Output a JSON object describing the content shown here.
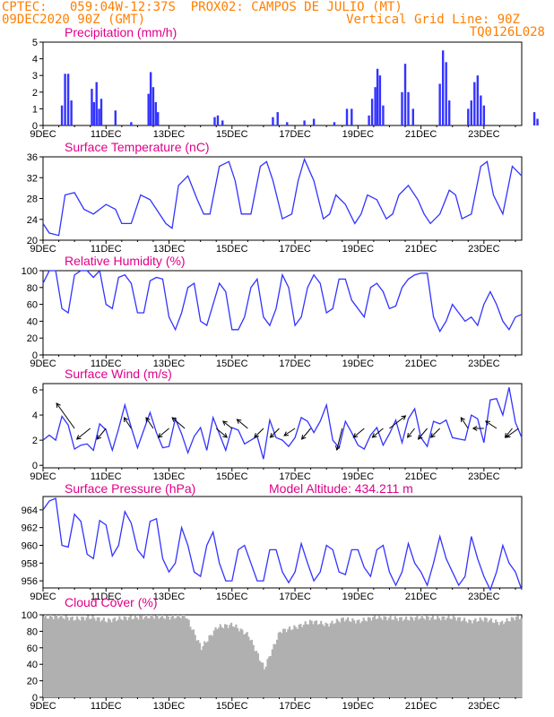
{
  "header": {
    "source": "CPTEC:",
    "coords": "059:04W-12:37S",
    "location": "PROX02: CAMPOS DE JULIO (MT)",
    "run": "09DEC2020 90Z (GMT)",
    "grid_note": "Vertical Grid Line: 90Z",
    "code": "TQ0126L028"
  },
  "x_ticks": [
    "9DEC",
    "11DEC",
    "13DEC",
    "15DEC",
    "17DEC",
    "19DEC",
    "21DEC",
    "23DEC"
  ],
  "colors": {
    "series": "#3333ff",
    "title": "#e0008a",
    "header": "#ff7f00",
    "cloud": "#b0b0b0",
    "arrow": "#000000"
  },
  "chart_data": [
    {
      "type": "bar",
      "title": "Precipitation (mm/h)",
      "xlabel": "",
      "ylabel": "",
      "ylim": [
        0,
        5
      ],
      "yticks": [
        "0",
        "1",
        "2",
        "3",
        "4",
        "5"
      ],
      "x_unit": "days since 9DEC",
      "events": [
        [
          0.6,
          1.2
        ],
        [
          0.7,
          3.1
        ],
        [
          0.8,
          3.1
        ],
        [
          0.9,
          1.5
        ],
        [
          1.55,
          2.2
        ],
        [
          1.62,
          1.4
        ],
        [
          1.7,
          2.6
        ],
        [
          1.78,
          1.0
        ],
        [
          1.85,
          1.6
        ],
        [
          2.3,
          0.9
        ],
        [
          2.8,
          0.2
        ],
        [
          3.35,
          1.9
        ],
        [
          3.42,
          3.2
        ],
        [
          3.5,
          2.3
        ],
        [
          3.58,
          1.4
        ],
        [
          3.65,
          0.8
        ],
        [
          5.45,
          0.5
        ],
        [
          5.55,
          0.6
        ],
        [
          5.7,
          0.3
        ],
        [
          7.3,
          0.5
        ],
        [
          7.45,
          0.8
        ],
        [
          7.75,
          0.2
        ],
        [
          8.3,
          0.3
        ],
        [
          8.6,
          0.4
        ],
        [
          9.25,
          0.2
        ],
        [
          9.65,
          1.0
        ],
        [
          9.8,
          1.0
        ],
        [
          10.35,
          0.6
        ],
        [
          10.45,
          1.6
        ],
        [
          10.55,
          2.3
        ],
        [
          10.62,
          3.4
        ],
        [
          10.7,
          3.0
        ],
        [
          10.8,
          1.2
        ],
        [
          11.4,
          2.0
        ],
        [
          11.5,
          3.7
        ],
        [
          11.6,
          2.0
        ],
        [
          11.75,
          1.0
        ],
        [
          12.6,
          2.5
        ],
        [
          12.7,
          4.5
        ],
        [
          12.8,
          3.8
        ],
        [
          12.9,
          1.5
        ],
        [
          13.5,
          1.0
        ],
        [
          13.6,
          1.5
        ],
        [
          13.7,
          2.6
        ],
        [
          13.8,
          3.0
        ],
        [
          13.9,
          1.8
        ],
        [
          14.0,
          1.2
        ],
        [
          15.6,
          0.8
        ],
        [
          15.7,
          0.4
        ],
        [
          16.3,
          0.3
        ]
      ]
    },
    {
      "type": "line",
      "title": "Surface Temperature (nC)",
      "xlabel": "",
      "ylabel": "",
      "ylim": [
        18.5,
        36
      ],
      "yticks": [
        "20",
        "24",
        "28",
        "32",
        "36"
      ],
      "x_unit": "days since 9DEC",
      "x": [
        0,
        0.2,
        0.5,
        0.7,
        1.0,
        1.3,
        1.6,
        1.8,
        2.0,
        2.3,
        2.5,
        2.8,
        3.1,
        3.4,
        3.6,
        3.9,
        4.1,
        4.3,
        4.6,
        4.9,
        5.1,
        5.3,
        5.6,
        5.9,
        6.1,
        6.3,
        6.6,
        6.9,
        7.1,
        7.3,
        7.6,
        7.9,
        8.1,
        8.3,
        8.6,
        8.9,
        9.1,
        9.3,
        9.6,
        9.9,
        10.1,
        10.3,
        10.6,
        10.9,
        11.1,
        11.3,
        11.6,
        11.9,
        12.1,
        12.3,
        12.6,
        12.9,
        13.1,
        13.3,
        13.6,
        13.9,
        14.1,
        14.3,
        14.6,
        14.9,
        15.2
      ],
      "y": [
        22,
        20,
        19.5,
        28,
        28.5,
        25,
        24,
        25,
        26,
        25,
        22,
        22,
        28,
        27,
        25,
        22,
        21,
        30,
        32,
        27,
        24,
        24,
        34,
        35,
        31,
        24,
        24,
        34,
        35,
        31,
        23,
        24,
        31,
        35.5,
        31,
        23,
        24,
        28,
        26,
        22,
        24,
        28,
        27,
        23,
        24,
        28,
        30,
        27,
        24,
        22,
        24,
        29,
        28,
        23,
        24,
        34,
        35,
        28,
        24,
        34,
        32
      ]
    },
    {
      "type": "line",
      "title": "Relative Humidity (%)",
      "xlabel": "",
      "ylabel": "",
      "ylim": [
        0,
        100
      ],
      "yticks": [
        "0",
        "20",
        "40",
        "60",
        "80",
        "100"
      ],
      "x_unit": "days since 9DEC",
      "x": [
        0,
        0.2,
        0.4,
        0.6,
        0.8,
        1.0,
        1.2,
        1.4,
        1.6,
        1.8,
        2.0,
        2.2,
        2.4,
        2.6,
        2.8,
        3.0,
        3.2,
        3.4,
        3.6,
        3.8,
        4.0,
        4.2,
        4.4,
        4.6,
        4.8,
        5.0,
        5.2,
        5.4,
        5.6,
        5.8,
        6.0,
        6.2,
        6.4,
        6.6,
        6.8,
        7.0,
        7.2,
        7.4,
        7.6,
        7.8,
        8.0,
        8.2,
        8.4,
        8.6,
        8.8,
        9.0,
        9.2,
        9.4,
        9.6,
        9.8,
        10.0,
        10.2,
        10.4,
        10.6,
        10.8,
        11.0,
        11.2,
        11.4,
        11.6,
        11.8,
        12.0,
        12.2,
        12.4,
        12.6,
        12.8,
        13.0,
        13.2,
        13.4,
        13.6,
        13.8,
        14.0,
        14.2,
        14.4,
        14.6,
        14.8,
        15.0,
        15.2
      ],
      "y": [
        85,
        100,
        100,
        55,
        50,
        95,
        100,
        100,
        92,
        100,
        60,
        55,
        92,
        95,
        85,
        50,
        50,
        88,
        92,
        90,
        45,
        30,
        50,
        80,
        85,
        40,
        35,
        60,
        85,
        75,
        30,
        30,
        45,
        80,
        90,
        45,
        35,
        55,
        95,
        80,
        35,
        45,
        80,
        95,
        85,
        50,
        55,
        90,
        90,
        65,
        55,
        45,
        80,
        85,
        75,
        55,
        58,
        80,
        90,
        95,
        97,
        97,
        45,
        28,
        40,
        60,
        50,
        40,
        45,
        35,
        60,
        75,
        60,
        40,
        30,
        45,
        48
      ]
    },
    {
      "type": "line",
      "title": "Surface Wind (m/s)",
      "xlabel": "",
      "ylabel": "",
      "ylim": [
        -0.2,
        6.5
      ],
      "yticks": [
        "0",
        "2",
        "4",
        "6"
      ],
      "x_unit": "days since 9DEC",
      "x": [
        0,
        0.2,
        0.4,
        0.6,
        0.8,
        1.0,
        1.2,
        1.4,
        1.6,
        1.8,
        2.0,
        2.2,
        2.4,
        2.6,
        2.8,
        3.0,
        3.2,
        3.4,
        3.6,
        3.8,
        4.0,
        4.2,
        4.4,
        4.6,
        4.8,
        5.0,
        5.2,
        5.4,
        5.6,
        5.8,
        6.0,
        6.2,
        6.4,
        6.6,
        6.8,
        7.0,
        7.2,
        7.4,
        7.6,
        7.8,
        8.0,
        8.2,
        8.4,
        8.6,
        8.8,
        9.0,
        9.2,
        9.4,
        9.6,
        9.8,
        10.0,
        10.2,
        10.4,
        10.6,
        10.8,
        11.0,
        11.2,
        11.4,
        11.6,
        11.8,
        12.0,
        12.2,
        12.4,
        12.6,
        12.8,
        13.0,
        13.2,
        13.4,
        13.6,
        13.8,
        14.0,
        14.2,
        14.4,
        14.6,
        14.8,
        15.0,
        15.2
      ],
      "y": [
        2,
        2.4,
        2,
        3.9,
        3.2,
        1.3,
        1.6,
        1.7,
        1.2,
        3.3,
        2.8,
        1.2,
        2.9,
        4.8,
        3.0,
        1.4,
        2.8,
        4.2,
        2.6,
        1.4,
        1.5,
        3.7,
        2.5,
        1.0,
        2.3,
        3.0,
        1.2,
        3.8,
        2.5,
        1.2,
        3.0,
        2.8,
        1.7,
        2.0,
        2.3,
        0.5,
        3.6,
        2.2,
        2.0,
        1.5,
        2.2,
        3.8,
        3.5,
        2.6,
        3.5,
        4.8,
        2.0,
        1.4,
        3.5,
        2.6,
        1.6,
        1.3,
        2.4,
        3.0,
        1.6,
        2.5,
        3.6,
        1.8,
        3.7,
        4.5,
        2.2,
        1.5,
        3.5,
        3.3,
        3.6,
        2.2,
        2.1,
        2.0,
        4.0,
        3.7,
        1.8,
        5.2,
        5.3,
        4.0,
        6.2,
        3.4,
        2.2
      ]
    },
    {
      "type": "line",
      "title": "Surface Pressure (hPa)",
      "annotation": "Model Altitude: 434.211 m",
      "xlabel": "",
      "ylabel": "",
      "ylim": [
        955.2,
        965.5
      ],
      "yticks": [
        "956",
        "958",
        "960",
        "962",
        "964"
      ],
      "x_unit": "days since 9DEC",
      "x": [
        0,
        0.2,
        0.4,
        0.6,
        0.8,
        1.0,
        1.2,
        1.4,
        1.6,
        1.8,
        2.0,
        2.2,
        2.4,
        2.6,
        2.8,
        3.0,
        3.2,
        3.4,
        3.6,
        3.8,
        4.0,
        4.2,
        4.4,
        4.6,
        4.8,
        5.0,
        5.2,
        5.4,
        5.6,
        5.8,
        6.0,
        6.2,
        6.4,
        6.6,
        6.8,
        7.0,
        7.2,
        7.4,
        7.6,
        7.8,
        8.0,
        8.2,
        8.4,
        8.6,
        8.8,
        9.0,
        9.2,
        9.4,
        9.6,
        9.8,
        10.0,
        10.2,
        10.4,
        10.6,
        10.8,
        11.0,
        11.2,
        11.4,
        11.6,
        11.8,
        12.0,
        12.2,
        12.4,
        12.6,
        12.8,
        13.0,
        13.2,
        13.4,
        13.6,
        13.8,
        14.0,
        14.2,
        14.4,
        14.6,
        14.8,
        15.0,
        15.2
      ],
      "y": [
        964,
        965,
        965.3,
        960,
        959.8,
        963.5,
        962.7,
        959,
        958.5,
        962.8,
        962.3,
        958.8,
        960,
        963.8,
        962.5,
        959.5,
        958.6,
        962.7,
        963,
        958.5,
        957,
        958,
        962,
        960,
        957,
        956.5,
        960,
        961.5,
        958,
        956,
        956,
        959.5,
        960,
        958,
        956,
        956,
        959.5,
        959.5,
        957,
        955.8,
        957,
        960.2,
        958,
        956,
        957,
        960,
        959.5,
        957,
        956.7,
        959.5,
        959.5,
        957.5,
        956.5,
        959.5,
        960,
        957,
        955.5,
        957,
        960.2,
        958,
        957,
        955.5,
        958,
        961,
        958.5,
        957,
        955.5,
        956.5,
        961,
        958.5,
        956.5,
        955,
        957,
        960,
        958,
        957,
        955
      ]
    },
    {
      "type": "bar",
      "title": "Cloud Cover (%)",
      "xlabel": "",
      "ylabel": "",
      "ylim": [
        0,
        100
      ],
      "yticks": [
        "0",
        "20",
        "40",
        "60",
        "80",
        "100"
      ],
      "x_unit": "days since 9DEC",
      "x": [
        0,
        0.5,
        1.0,
        1.5,
        2.0,
        2.5,
        3.0,
        3.5,
        4.0,
        4.5,
        5.0,
        5.5,
        6.0,
        6.5,
        7.0,
        7.5,
        8.0,
        8.5,
        9.0,
        9.5,
        10.0,
        10.5,
        11.0,
        11.5,
        12.0,
        12.5,
        13.0,
        13.5,
        14.0,
        14.5,
        15.0
      ],
      "y": [
        97,
        98,
        95,
        97,
        93,
        96,
        97,
        98,
        97,
        99,
        60,
        85,
        88,
        75,
        35,
        80,
        85,
        92,
        88,
        95,
        92,
        97,
        96,
        95,
        97,
        96,
        97,
        92,
        95,
        90,
        97
      ]
    }
  ]
}
